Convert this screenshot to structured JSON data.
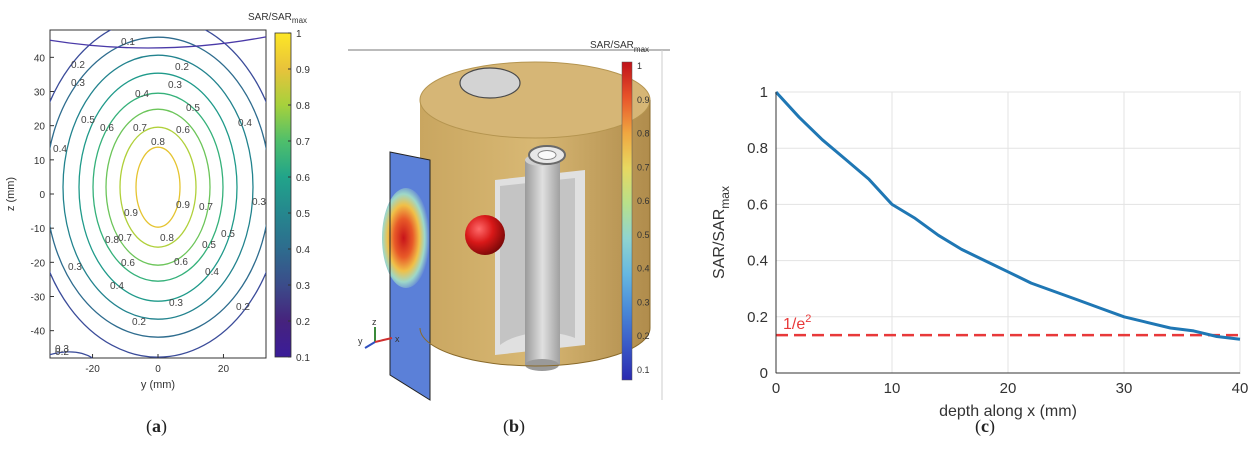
{
  "figure": {
    "panel_labels": [
      "a",
      "b",
      "c"
    ]
  },
  "chart_data": [
    {
      "type": "contour",
      "panel": "a",
      "xlabel": "y (mm)",
      "ylabel": "z (mm)",
      "xlim": [
        -33,
        33
      ],
      "ylim": [
        -48,
        48
      ],
      "xticks": [
        -20,
        0,
        20
      ],
      "yticks": [
        40,
        30,
        20,
        10,
        0,
        -10,
        -20,
        -30,
        -40
      ],
      "contour_levels": [
        0.1,
        0.2,
        0.3,
        0.4,
        0.5,
        0.6,
        0.7,
        0.8,
        0.9
      ],
      "colorbar": {
        "title_main": "SAR/SAR",
        "title_sub": "max",
        "ticks": [
          "1",
          "0.9",
          "0.8",
          "0.7",
          "0.6",
          "0.5",
          "0.4",
          "0.3",
          "0.2",
          "0.1"
        ],
        "colors": [
          "#fde725",
          "#e8c33b",
          "#a6d13c",
          "#4fbf6b",
          "#21a48a",
          "#25878e",
          "#2e6c8e",
          "#3b4c8a",
          "#46237d",
          "#3a1c99"
        ]
      },
      "contour_labels": [
        "0.1",
        "0.2",
        "0.3",
        "0.2",
        "0.3",
        "0.4",
        "0.5",
        "0.5",
        "0.6",
        "0.7",
        "0.6",
        "0.8",
        "0.4",
        "0.9",
        "0.9",
        "0.7",
        "0.5",
        "0.3",
        "0.7",
        "0.8",
        "0.8",
        "0.6",
        "0.6",
        "0.5",
        "0.3",
        "0.4",
        "0.4",
        "0.3",
        "0.2",
        "0.2",
        "0.2",
        "0.3",
        "0.4"
      ]
    },
    {
      "type": "3d-render",
      "panel": "b",
      "colorbar": {
        "title_main": "SAR/SAR",
        "title_sub": "max",
        "ticks": [
          "1",
          "0.9",
          "0.8",
          "0.7",
          "0.6",
          "0.5",
          "0.4",
          "0.3",
          "0.2",
          "0.1"
        ],
        "colors": [
          "#c0121a",
          "#e8542a",
          "#f0a640",
          "#e8d860",
          "#b8e08a",
          "#8fd4d0",
          "#66b8e0",
          "#4a8ad8",
          "#3a5ac8",
          "#2a2ab0"
        ]
      },
      "axes_triad": {
        "z": "z",
        "y": "y",
        "x": "x"
      },
      "colors": {
        "cylinder": "#d2b06a",
        "cylinder_dark": "#a8884a",
        "rod": "#c8c8c8",
        "hotspot": "#d81818"
      }
    },
    {
      "type": "line",
      "panel": "c",
      "xlabel": "depth along x (mm)",
      "ylabel_main": "SAR/SAR",
      "ylabel_sub": "max",
      "xlim": [
        0,
        40
      ],
      "ylim": [
        0,
        1
      ],
      "xticks": [
        0,
        10,
        20,
        30,
        40
      ],
      "yticks": [
        0,
        0.2,
        0.4,
        0.6,
        0.8,
        1
      ],
      "grid": true,
      "series": [
        {
          "color": "#1f77b4",
          "x": [
            0,
            2,
            4,
            6,
            8,
            10,
            12,
            14,
            16,
            18,
            20,
            22,
            24,
            26,
            28,
            30,
            32,
            34,
            36,
            38,
            40
          ],
          "y": [
            1.0,
            0.91,
            0.83,
            0.76,
            0.69,
            0.6,
            0.55,
            0.49,
            0.44,
            0.4,
            0.36,
            0.32,
            0.29,
            0.26,
            0.23,
            0.2,
            0.18,
            0.16,
            0.15,
            0.13,
            0.12
          ]
        }
      ],
      "threshold": {
        "value": 0.135,
        "label_main": "1/e",
        "label_sup": "2",
        "color": "#e8393a"
      }
    }
  ]
}
